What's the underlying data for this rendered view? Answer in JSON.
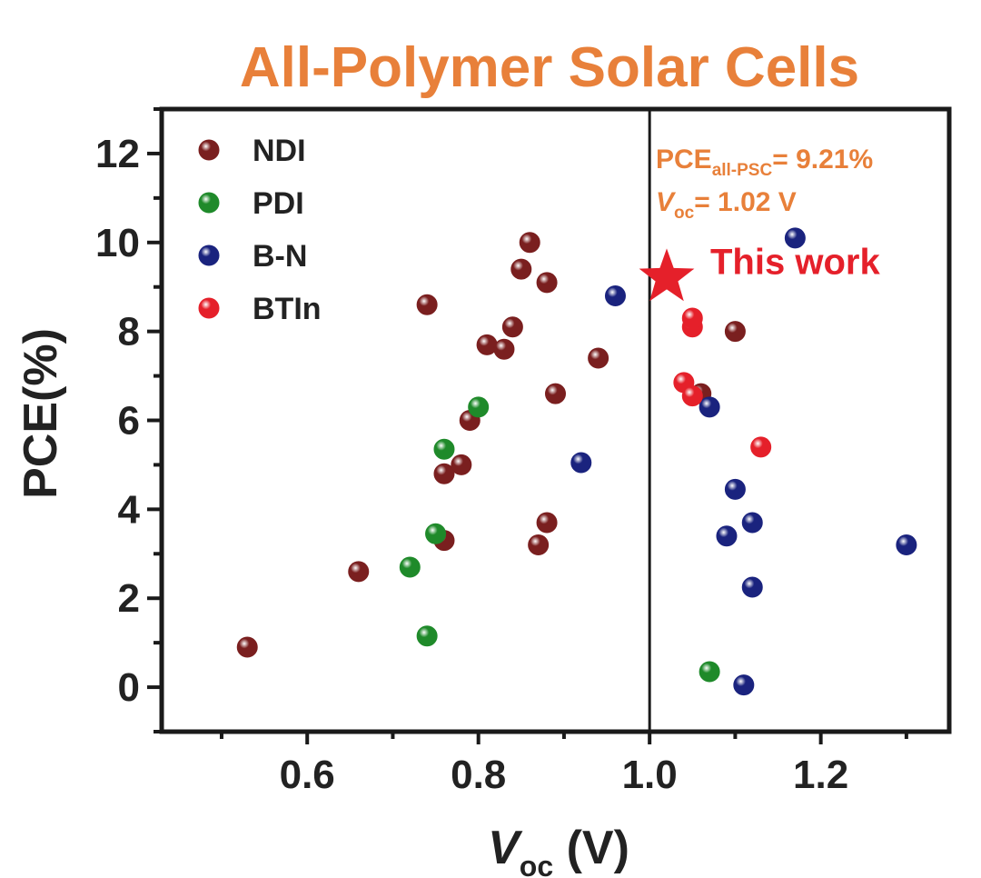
{
  "chart_data": {
    "type": "scatter",
    "title": "All-Polymer Solar Cells",
    "xlabel_main": "V",
    "xlabel_sub": "oc",
    "xlabel_unit": " (V)",
    "ylabel": "PCE(%)",
    "xlim": [
      0.43,
      1.35
    ],
    "ylim": [
      -1,
      13
    ],
    "xticks": [
      0.6,
      0.8,
      1.0,
      1.2
    ],
    "xtick_labels": [
      "0.6",
      "0.8",
      "1.0",
      "1.2"
    ],
    "yticks": [
      0,
      2,
      4,
      6,
      8,
      10,
      12
    ],
    "ytick_labels": [
      "0",
      "2",
      "4",
      "6",
      "8",
      "10",
      "12"
    ],
    "reference_line_x": 1.0,
    "legend_position": "top-left",
    "series": [
      {
        "name": "NDI",
        "color": "#7a1f1f",
        "points": [
          [
            0.53,
            0.9
          ],
          [
            0.66,
            2.6
          ],
          [
            0.74,
            8.6
          ],
          [
            0.76,
            3.3
          ],
          [
            0.76,
            4.8
          ],
          [
            0.78,
            5.0
          ],
          [
            0.79,
            6.0
          ],
          [
            0.81,
            7.7
          ],
          [
            0.83,
            7.6
          ],
          [
            0.84,
            8.1
          ],
          [
            0.85,
            9.4
          ],
          [
            0.86,
            10.0
          ],
          [
            0.88,
            9.1
          ],
          [
            0.87,
            3.2
          ],
          [
            0.88,
            3.7
          ],
          [
            0.89,
            6.6
          ],
          [
            0.94,
            7.4
          ],
          [
            1.06,
            6.6
          ],
          [
            1.1,
            8.0
          ]
        ]
      },
      {
        "name": "PDI",
        "color": "#1f8a2a",
        "points": [
          [
            0.72,
            2.7
          ],
          [
            0.74,
            1.15
          ],
          [
            0.75,
            3.45
          ],
          [
            0.76,
            5.35
          ],
          [
            0.8,
            6.3
          ],
          [
            1.07,
            0.35
          ]
        ]
      },
      {
        "name": "B-N",
        "color": "#1a237e",
        "points": [
          [
            0.92,
            5.05
          ],
          [
            0.96,
            8.8
          ],
          [
            1.07,
            6.3
          ],
          [
            1.09,
            3.4
          ],
          [
            1.1,
            4.45
          ],
          [
            1.11,
            0.05
          ],
          [
            1.12,
            3.7
          ],
          [
            1.12,
            2.25
          ],
          [
            1.17,
            10.1
          ],
          [
            1.3,
            3.2
          ]
        ]
      },
      {
        "name": "BTIn",
        "color": "#e5202a",
        "points": [
          [
            1.04,
            6.85
          ],
          [
            1.05,
            6.55
          ],
          [
            1.05,
            8.1
          ],
          [
            1.05,
            8.3
          ],
          [
            1.13,
            5.4
          ]
        ]
      }
    ],
    "highlight": {
      "name": "This work",
      "x": 1.02,
      "y": 9.21,
      "color": "#e5202a"
    },
    "annotation": {
      "pce_main": "PCE",
      "pce_sub": "all-PSC",
      "pce_value": "= 9.21%",
      "voc_main": "V",
      "voc_sub": "oc",
      "voc_value": "= 1.02 V",
      "color": "#e8803a"
    },
    "title_color": "#e8803a"
  }
}
